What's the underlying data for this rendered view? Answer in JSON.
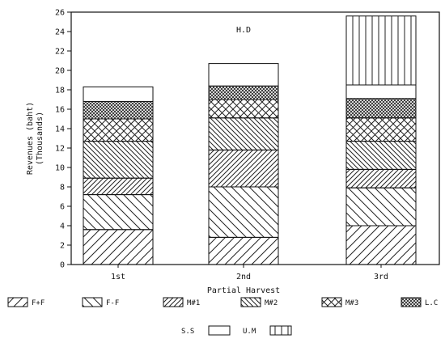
{
  "chart_data": {
    "type": "bar",
    "stacked": true,
    "annotation": "H.D",
    "xlabel": "Partial Harvest",
    "ylabel": "Revenues (baht)",
    "ylabel_unit": "(Thousands)",
    "ylim": [
      0,
      26
    ],
    "yticks": [
      0,
      2,
      4,
      6,
      8,
      10,
      12,
      14,
      16,
      18,
      20,
      22,
      24,
      26
    ],
    "categories": [
      "1st",
      "2nd",
      "3rd"
    ],
    "series": [
      {
        "name": "F+F",
        "pattern": "diag-up",
        "values": [
          3.6,
          2.8,
          4.0
        ]
      },
      {
        "name": "F-F",
        "pattern": "diag-down",
        "values": [
          3.6,
          5.2,
          3.9
        ]
      },
      {
        "name": "M#1",
        "pattern": "diag-up-dense",
        "values": [
          1.7,
          3.8,
          1.9
        ]
      },
      {
        "name": "M#2",
        "pattern": "diag-down-dense",
        "values": [
          3.8,
          3.3,
          2.9
        ]
      },
      {
        "name": "M#3",
        "pattern": "crosshatch",
        "values": [
          2.3,
          1.9,
          2.4
        ]
      },
      {
        "name": "L.C",
        "pattern": "dense-cross",
        "values": [
          1.8,
          1.4,
          2.0
        ]
      },
      {
        "name": "S.S",
        "pattern": "empty",
        "values": [
          1.5,
          2.3,
          1.4
        ]
      },
      {
        "name": "U.M",
        "pattern": "vertical",
        "values": [
          0,
          0,
          7.1
        ]
      }
    ]
  }
}
